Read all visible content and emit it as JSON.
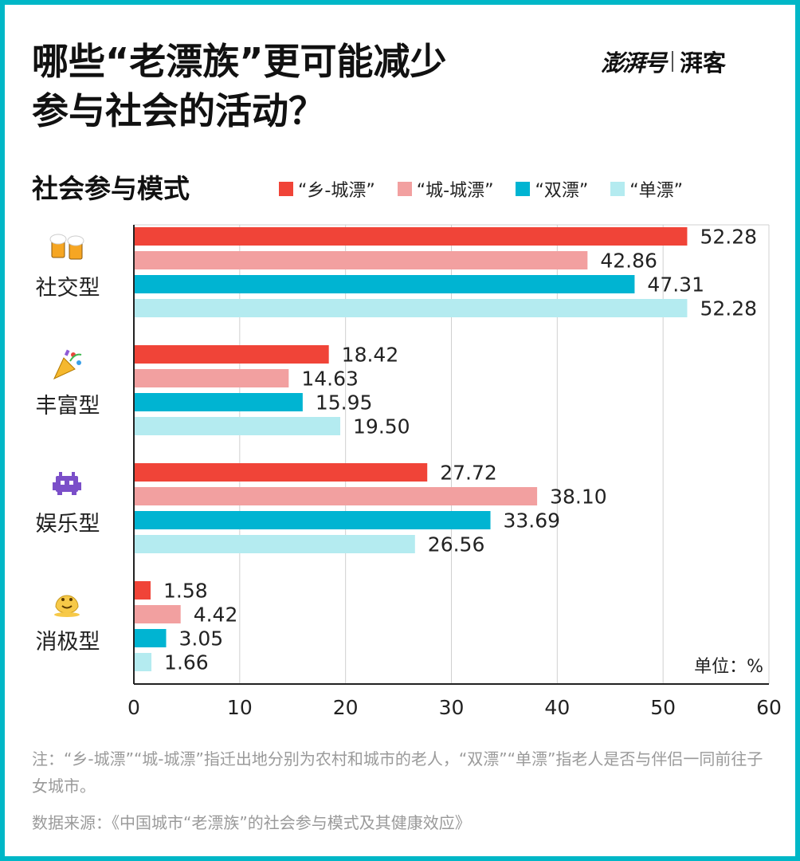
{
  "header": {
    "title_lines": [
      "哪些“老漂族”更可能减少",
      "参与社会的活动？"
    ],
    "brand_main": "澎湃号",
    "brand_sub": "湃客"
  },
  "subtitle": "社会参与模式",
  "chart_data": {
    "type": "bar",
    "orientation": "horizontal",
    "categories": [
      "社交型",
      "丰富型",
      "娱乐型",
      "消极型"
    ],
    "category_icons": [
      "beer-mugs-icon",
      "party-popper-icon",
      "space-invader-icon",
      "melting-face-icon"
    ],
    "series": [
      {
        "name": "“乡-城漂”",
        "color": "#f04438",
        "values": [
          52.28,
          18.42,
          27.72,
          1.58
        ]
      },
      {
        "name": "“城-城漂”",
        "color": "#f2a0a0",
        "values": [
          42.86,
          14.63,
          38.1,
          4.42
        ]
      },
      {
        "name": "“双漂”",
        "color": "#00b4d2",
        "values": [
          47.31,
          15.95,
          33.69,
          3.05
        ]
      },
      {
        "name": "“单漂”",
        "color": "#b4ebf0",
        "values": [
          52.28,
          19.5,
          26.56,
          1.66
        ]
      }
    ],
    "value_labels": [
      [
        "52.28",
        "18.42",
        "27.72",
        "1.58"
      ],
      [
        "42.86",
        "14.63",
        "38.10",
        "4.42"
      ],
      [
        "47.31",
        "15.95",
        "33.69",
        "3.05"
      ],
      [
        "52.28",
        "19.50",
        "26.56",
        "1.66"
      ]
    ],
    "xlim": [
      0,
      60
    ],
    "xticks": [
      0,
      10,
      20,
      30,
      40,
      50,
      60
    ],
    "unit_label": "单位：%",
    "legend_position": "top",
    "grid": true
  },
  "footer": {
    "note": "注：“乡-城漂”“城-城漂”指迁出地分别为农村和城市的老人，“双漂”“单漂”指老人是否与伴侣一同前往子女城市。",
    "source": "数据来源：《中国城市“老漂族”的社会参与模式及其健康效应》"
  },
  "colors": {
    "frame": "#00b7c7",
    "grid": "#d0d0d0",
    "axis": "#222222"
  }
}
